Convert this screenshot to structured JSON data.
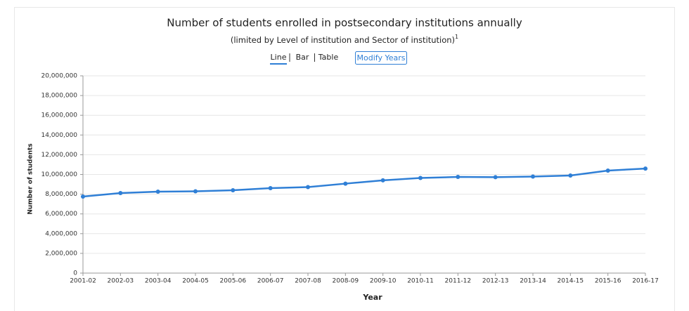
{
  "chart_data": {
    "type": "line",
    "title": "Number of students enrolled in postsecondary institutions annually",
    "subtitle": "(limited by Level of institution and Sector of institution)",
    "subtitle_note": "1",
    "x_label": "Year",
    "y_label": "Number of students",
    "categories": [
      "2001-02",
      "2002-03",
      "2003-04",
      "2004-05",
      "2005-06",
      "2006-07",
      "2007-08",
      "2008-09",
      "2009-10",
      "2010-11",
      "2011-12",
      "2012-13",
      "2013-14",
      "2014-15",
      "2015-16",
      "2016-17"
    ],
    "values": [
      7760000,
      8110000,
      8260000,
      8290000,
      8400000,
      8610000,
      8720000,
      9070000,
      9400000,
      9640000,
      9750000,
      9720000,
      9790000,
      9890000,
      10390000,
      10600000
    ],
    "color": "#2f7fd6",
    "ylim": [
      0,
      20000000
    ],
    "yticks": [
      0,
      {
        "value": 2000000,
        "label": "2,000,000"
      },
      {
        "value": 4000000,
        "label": "4,000,000"
      },
      {
        "value": 6000000,
        "label": "6,000,000"
      },
      {
        "value": 8000000,
        "label": "8,000,000"
      },
      {
        "value": 10000000,
        "label": "10,000,000"
      },
      {
        "value": 12000000,
        "label": "12,000,000"
      },
      {
        "value": 14000000,
        "label": "14,000,000"
      },
      {
        "value": 16000000,
        "label": "16,000,000"
      },
      {
        "value": 18000000,
        "label": "18,000,000"
      },
      {
        "value": 20000000,
        "label": "20,000,000"
      }
    ],
    "grid": true
  },
  "controls": {
    "views": [
      "Line",
      "Bar",
      "Table"
    ],
    "active_view": 0,
    "button": "Modify Years"
  }
}
